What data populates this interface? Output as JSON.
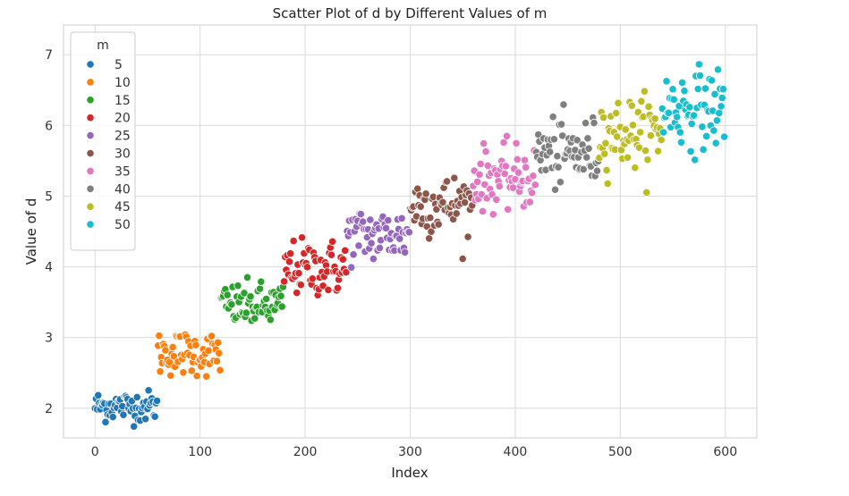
{
  "chart_data": {
    "type": "scatter",
    "title": "Scatter Plot of d by Different Values of m",
    "xlabel": "Index",
    "ylabel": "Value of d",
    "xlim": [
      -30,
      630
    ],
    "ylim": [
      1.58,
      7.42
    ],
    "xticks": [
      0,
      100,
      200,
      300,
      400,
      500,
      600
    ],
    "yticks": [
      2,
      3,
      4,
      5,
      6,
      7
    ],
    "grid": true,
    "legend": {
      "title": "m",
      "position": "upper-left"
    },
    "series": [
      {
        "name": "5",
        "color": "#1f77b4",
        "x_start": 0,
        "x_end": 59,
        "baseline": 2.03,
        "slope": 0.0,
        "spread": 0.11
      },
      {
        "name": "10",
        "color": "#ff7f0e",
        "x_start": 60,
        "x_end": 119,
        "baseline": 2.78,
        "slope": 0.0,
        "spread": 0.16
      },
      {
        "name": "15",
        "color": "#2ca02c",
        "x_start": 120,
        "x_end": 179,
        "baseline": 3.45,
        "slope": 0.0,
        "spread": 0.16
      },
      {
        "name": "20",
        "color": "#d62728",
        "x_start": 180,
        "x_end": 239,
        "baseline": 3.98,
        "slope": 0.0,
        "spread": 0.2
      },
      {
        "name": "25",
        "color": "#9467bd",
        "x_start": 240,
        "x_end": 299,
        "baseline": 4.45,
        "slope": 0.0,
        "spread": 0.2
      },
      {
        "name": "30",
        "color": "#8c564b",
        "x_start": 300,
        "x_end": 359,
        "baseline": 4.88,
        "slope": 0.0,
        "spread": 0.22
      },
      {
        "name": "35",
        "color": "#e377c2",
        "x_start": 360,
        "x_end": 419,
        "baseline": 5.25,
        "slope": 0.0,
        "spread": 0.22
      },
      {
        "name": "40",
        "color": "#7f7f7f",
        "x_start": 420,
        "x_end": 479,
        "baseline": 5.6,
        "slope": 0.0,
        "spread": 0.25
      },
      {
        "name": "45",
        "color": "#bcbd22",
        "x_start": 480,
        "x_end": 539,
        "baseline": 5.9,
        "slope": 0.0,
        "spread": 0.25
      },
      {
        "name": "50",
        "color": "#17becf",
        "x_start": 540,
        "x_end": 599,
        "baseline": 6.25,
        "slope": 0.0,
        "spread": 0.28
      }
    ]
  }
}
